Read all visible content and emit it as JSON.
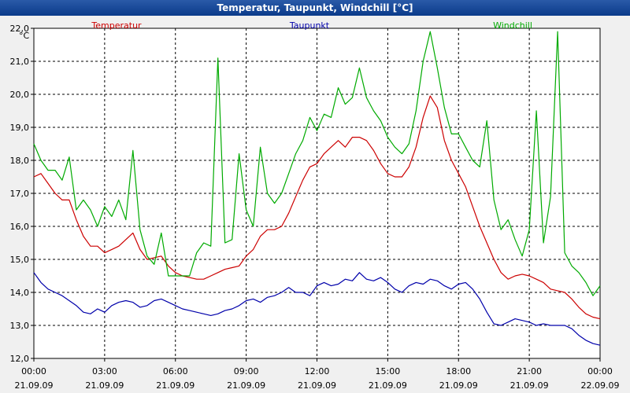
{
  "window": {
    "title": "Temperatur, Taupunkt, Windchill [°C]"
  },
  "chart_data": {
    "type": "line",
    "title": "Temperatur, Taupunkt, Windchill [°C]",
    "ylabel": "°C",
    "ylim": [
      12.0,
      22.0
    ],
    "yticks": [
      "12,0",
      "13,0",
      "14,0",
      "15,0",
      "16,0",
      "17,0",
      "18,0",
      "19,0",
      "20,0",
      "21,0",
      "22,0"
    ],
    "xlim_hours": [
      0,
      24
    ],
    "xticks": [
      {
        "time": "00:00",
        "date": "21.09.09"
      },
      {
        "time": "03:00",
        "date": "21.09.09"
      },
      {
        "time": "06:00",
        "date": "21.09.09"
      },
      {
        "time": "09:00",
        "date": "21.09.09"
      },
      {
        "time": "12:00",
        "date": "21.09.09"
      },
      {
        "time": "15:00",
        "date": "21.09.09"
      },
      {
        "time": "18:00",
        "date": "21.09.09"
      },
      {
        "time": "21:00",
        "date": "21.09.09"
      },
      {
        "time": "00:00",
        "date": "22.09.09"
      }
    ],
    "grid": true,
    "series": [
      {
        "name": "Temperatur",
        "color": "#cc0000",
        "x": [
          0,
          0.3,
          0.6,
          0.9,
          1.2,
          1.5,
          1.8,
          2.1,
          2.4,
          2.7,
          3.0,
          3.3,
          3.6,
          3.9,
          4.2,
          4.5,
          4.8,
          5.1,
          5.4,
          5.7,
          6.0,
          6.3,
          6.6,
          6.9,
          7.2,
          7.5,
          7.8,
          8.1,
          8.4,
          8.7,
          9.0,
          9.3,
          9.6,
          9.9,
          10.2,
          10.5,
          10.8,
          11.1,
          11.4,
          11.7,
          12.0,
          12.3,
          12.6,
          12.9,
          13.2,
          13.5,
          13.8,
          14.1,
          14.4,
          14.7,
          15.0,
          15.3,
          15.6,
          15.9,
          16.2,
          16.5,
          16.8,
          17.1,
          17.4,
          17.7,
          18.0,
          18.3,
          18.6,
          18.9,
          19.2,
          19.5,
          19.8,
          20.1,
          20.4,
          20.7,
          21.0,
          21.3,
          21.6,
          21.9,
          22.2,
          22.5,
          22.8,
          23.1,
          23.4,
          23.7,
          24.0
        ],
        "y": [
          17.5,
          17.6,
          17.3,
          17.0,
          16.8,
          16.8,
          16.2,
          15.7,
          15.4,
          15.4,
          15.2,
          15.3,
          15.4,
          15.6,
          15.8,
          15.3,
          15.0,
          15.05,
          15.1,
          14.8,
          14.6,
          14.5,
          14.45,
          14.4,
          14.4,
          14.5,
          14.6,
          14.7,
          14.75,
          14.8,
          15.1,
          15.3,
          15.7,
          15.9,
          15.9,
          16.0,
          16.4,
          16.9,
          17.4,
          17.8,
          17.9,
          18.2,
          18.4,
          18.6,
          18.4,
          18.7,
          18.7,
          18.6,
          18.3,
          17.9,
          17.6,
          17.5,
          17.5,
          17.8,
          18.4,
          19.3,
          19.95,
          19.6,
          18.6,
          18.0,
          17.6,
          17.2,
          16.6,
          16.0,
          15.5,
          15.0,
          14.6,
          14.4,
          14.5,
          14.55,
          14.5,
          14.4,
          14.3,
          14.1,
          14.05,
          14.0,
          13.8,
          13.55,
          13.35,
          13.25,
          13.2
        ]
      },
      {
        "name": "Taupunkt",
        "color": "#0000aa",
        "x": [
          0,
          0.3,
          0.6,
          0.9,
          1.2,
          1.5,
          1.8,
          2.1,
          2.4,
          2.7,
          3.0,
          3.3,
          3.6,
          3.9,
          4.2,
          4.5,
          4.8,
          5.1,
          5.4,
          5.7,
          6.0,
          6.3,
          6.6,
          6.9,
          7.2,
          7.5,
          7.8,
          8.1,
          8.4,
          8.7,
          9.0,
          9.3,
          9.6,
          9.9,
          10.2,
          10.5,
          10.8,
          11.1,
          11.4,
          11.7,
          12.0,
          12.3,
          12.6,
          12.9,
          13.2,
          13.5,
          13.8,
          14.1,
          14.4,
          14.7,
          15.0,
          15.3,
          15.6,
          15.9,
          16.2,
          16.5,
          16.8,
          17.1,
          17.4,
          17.7,
          18.0,
          18.3,
          18.6,
          18.9,
          19.2,
          19.5,
          19.8,
          20.1,
          20.4,
          20.7,
          21.0,
          21.3,
          21.6,
          21.9,
          22.2,
          22.5,
          22.8,
          23.1,
          23.4,
          23.7,
          24.0
        ],
        "y": [
          14.6,
          14.3,
          14.1,
          14.0,
          13.9,
          13.75,
          13.6,
          13.4,
          13.35,
          13.5,
          13.4,
          13.6,
          13.7,
          13.75,
          13.7,
          13.55,
          13.6,
          13.75,
          13.8,
          13.7,
          13.6,
          13.5,
          13.45,
          13.4,
          13.35,
          13.3,
          13.35,
          13.45,
          13.5,
          13.6,
          13.75,
          13.8,
          13.7,
          13.85,
          13.9,
          14.0,
          14.15,
          14.0,
          14.0,
          13.9,
          14.2,
          14.3,
          14.2,
          14.25,
          14.4,
          14.35,
          14.6,
          14.4,
          14.35,
          14.45,
          14.3,
          14.1,
          14.0,
          14.2,
          14.3,
          14.25,
          14.4,
          14.35,
          14.2,
          14.1,
          14.25,
          14.3,
          14.1,
          13.8,
          13.4,
          13.05,
          13.0,
          13.1,
          13.2,
          13.15,
          13.1,
          13.0,
          13.05,
          13.0,
          13.0,
          13.0,
          12.9,
          12.7,
          12.55,
          12.45,
          12.4
        ]
      },
      {
        "name": "Windchill",
        "color": "#00aa00",
        "x": [
          0,
          0.3,
          0.6,
          0.9,
          1.2,
          1.5,
          1.8,
          2.1,
          2.4,
          2.7,
          3.0,
          3.3,
          3.6,
          3.9,
          4.2,
          4.5,
          4.8,
          5.1,
          5.4,
          5.7,
          6.0,
          6.3,
          6.6,
          6.9,
          7.2,
          7.5,
          7.8,
          8.1,
          8.4,
          8.7,
          9.0,
          9.3,
          9.6,
          9.9,
          10.2,
          10.5,
          10.8,
          11.1,
          11.4,
          11.7,
          12.0,
          12.3,
          12.6,
          12.9,
          13.2,
          13.5,
          13.8,
          14.1,
          14.4,
          14.7,
          15.0,
          15.3,
          15.6,
          15.9,
          16.2,
          16.5,
          16.8,
          17.1,
          17.4,
          17.7,
          18.0,
          18.3,
          18.6,
          18.9,
          19.2,
          19.5,
          19.8,
          20.1,
          20.4,
          20.7,
          21.0,
          21.3,
          21.6,
          21.9,
          22.2,
          22.5,
          22.8,
          23.1,
          23.4,
          23.7,
          24.0
        ],
        "y": [
          18.5,
          18.0,
          17.7,
          17.7,
          17.4,
          18.1,
          16.5,
          16.8,
          16.5,
          16.0,
          16.6,
          16.3,
          16.8,
          16.2,
          18.3,
          15.9,
          15.1,
          14.85,
          15.8,
          14.5,
          14.5,
          14.5,
          14.5,
          15.2,
          15.5,
          15.4,
          21.1,
          15.5,
          15.6,
          18.2,
          16.5,
          16.0,
          18.4,
          17.0,
          16.7,
          17.0,
          17.6,
          18.2,
          18.6,
          19.3,
          18.9,
          19.4,
          19.3,
          20.2,
          19.7,
          19.9,
          20.8,
          19.9,
          19.5,
          19.2,
          18.7,
          18.4,
          18.2,
          18.5,
          19.5,
          21.0,
          21.9,
          20.8,
          19.6,
          18.8,
          18.8,
          18.4,
          18.0,
          17.8,
          19.2,
          16.8,
          15.9,
          16.2,
          15.6,
          15.1,
          15.9,
          19.5,
          15.5,
          16.9,
          21.9,
          15.2,
          14.8,
          14.6,
          14.3,
          13.9,
          14.2
        ]
      }
    ]
  }
}
